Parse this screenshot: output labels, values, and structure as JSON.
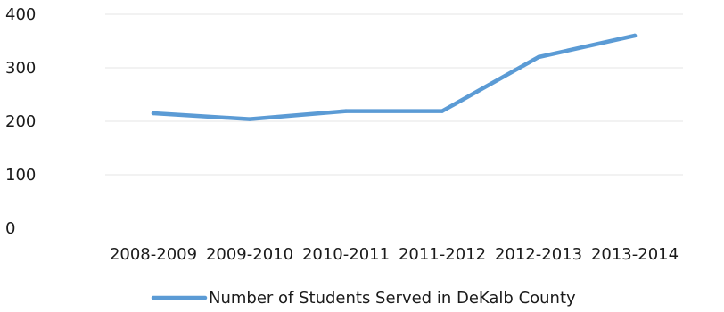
{
  "chart_data": {
    "type": "line",
    "title": "",
    "xlabel": "",
    "ylabel": "",
    "categories": [
      "2008-2009",
      "2009-2010",
      "2010-2011",
      "2011-2012",
      "2012-2013",
      "2013-2014"
    ],
    "y_ticks": [
      "0",
      "100",
      "200",
      "300",
      "400"
    ],
    "ylim": [
      0,
      400
    ],
    "grid": true,
    "legend_position": "bottom",
    "series": [
      {
        "name": "Number of Students Served in DeKalb County",
        "color": "#5b9bd5",
        "values": [
          215,
          204,
          219,
          219,
          320,
          360
        ]
      }
    ]
  }
}
